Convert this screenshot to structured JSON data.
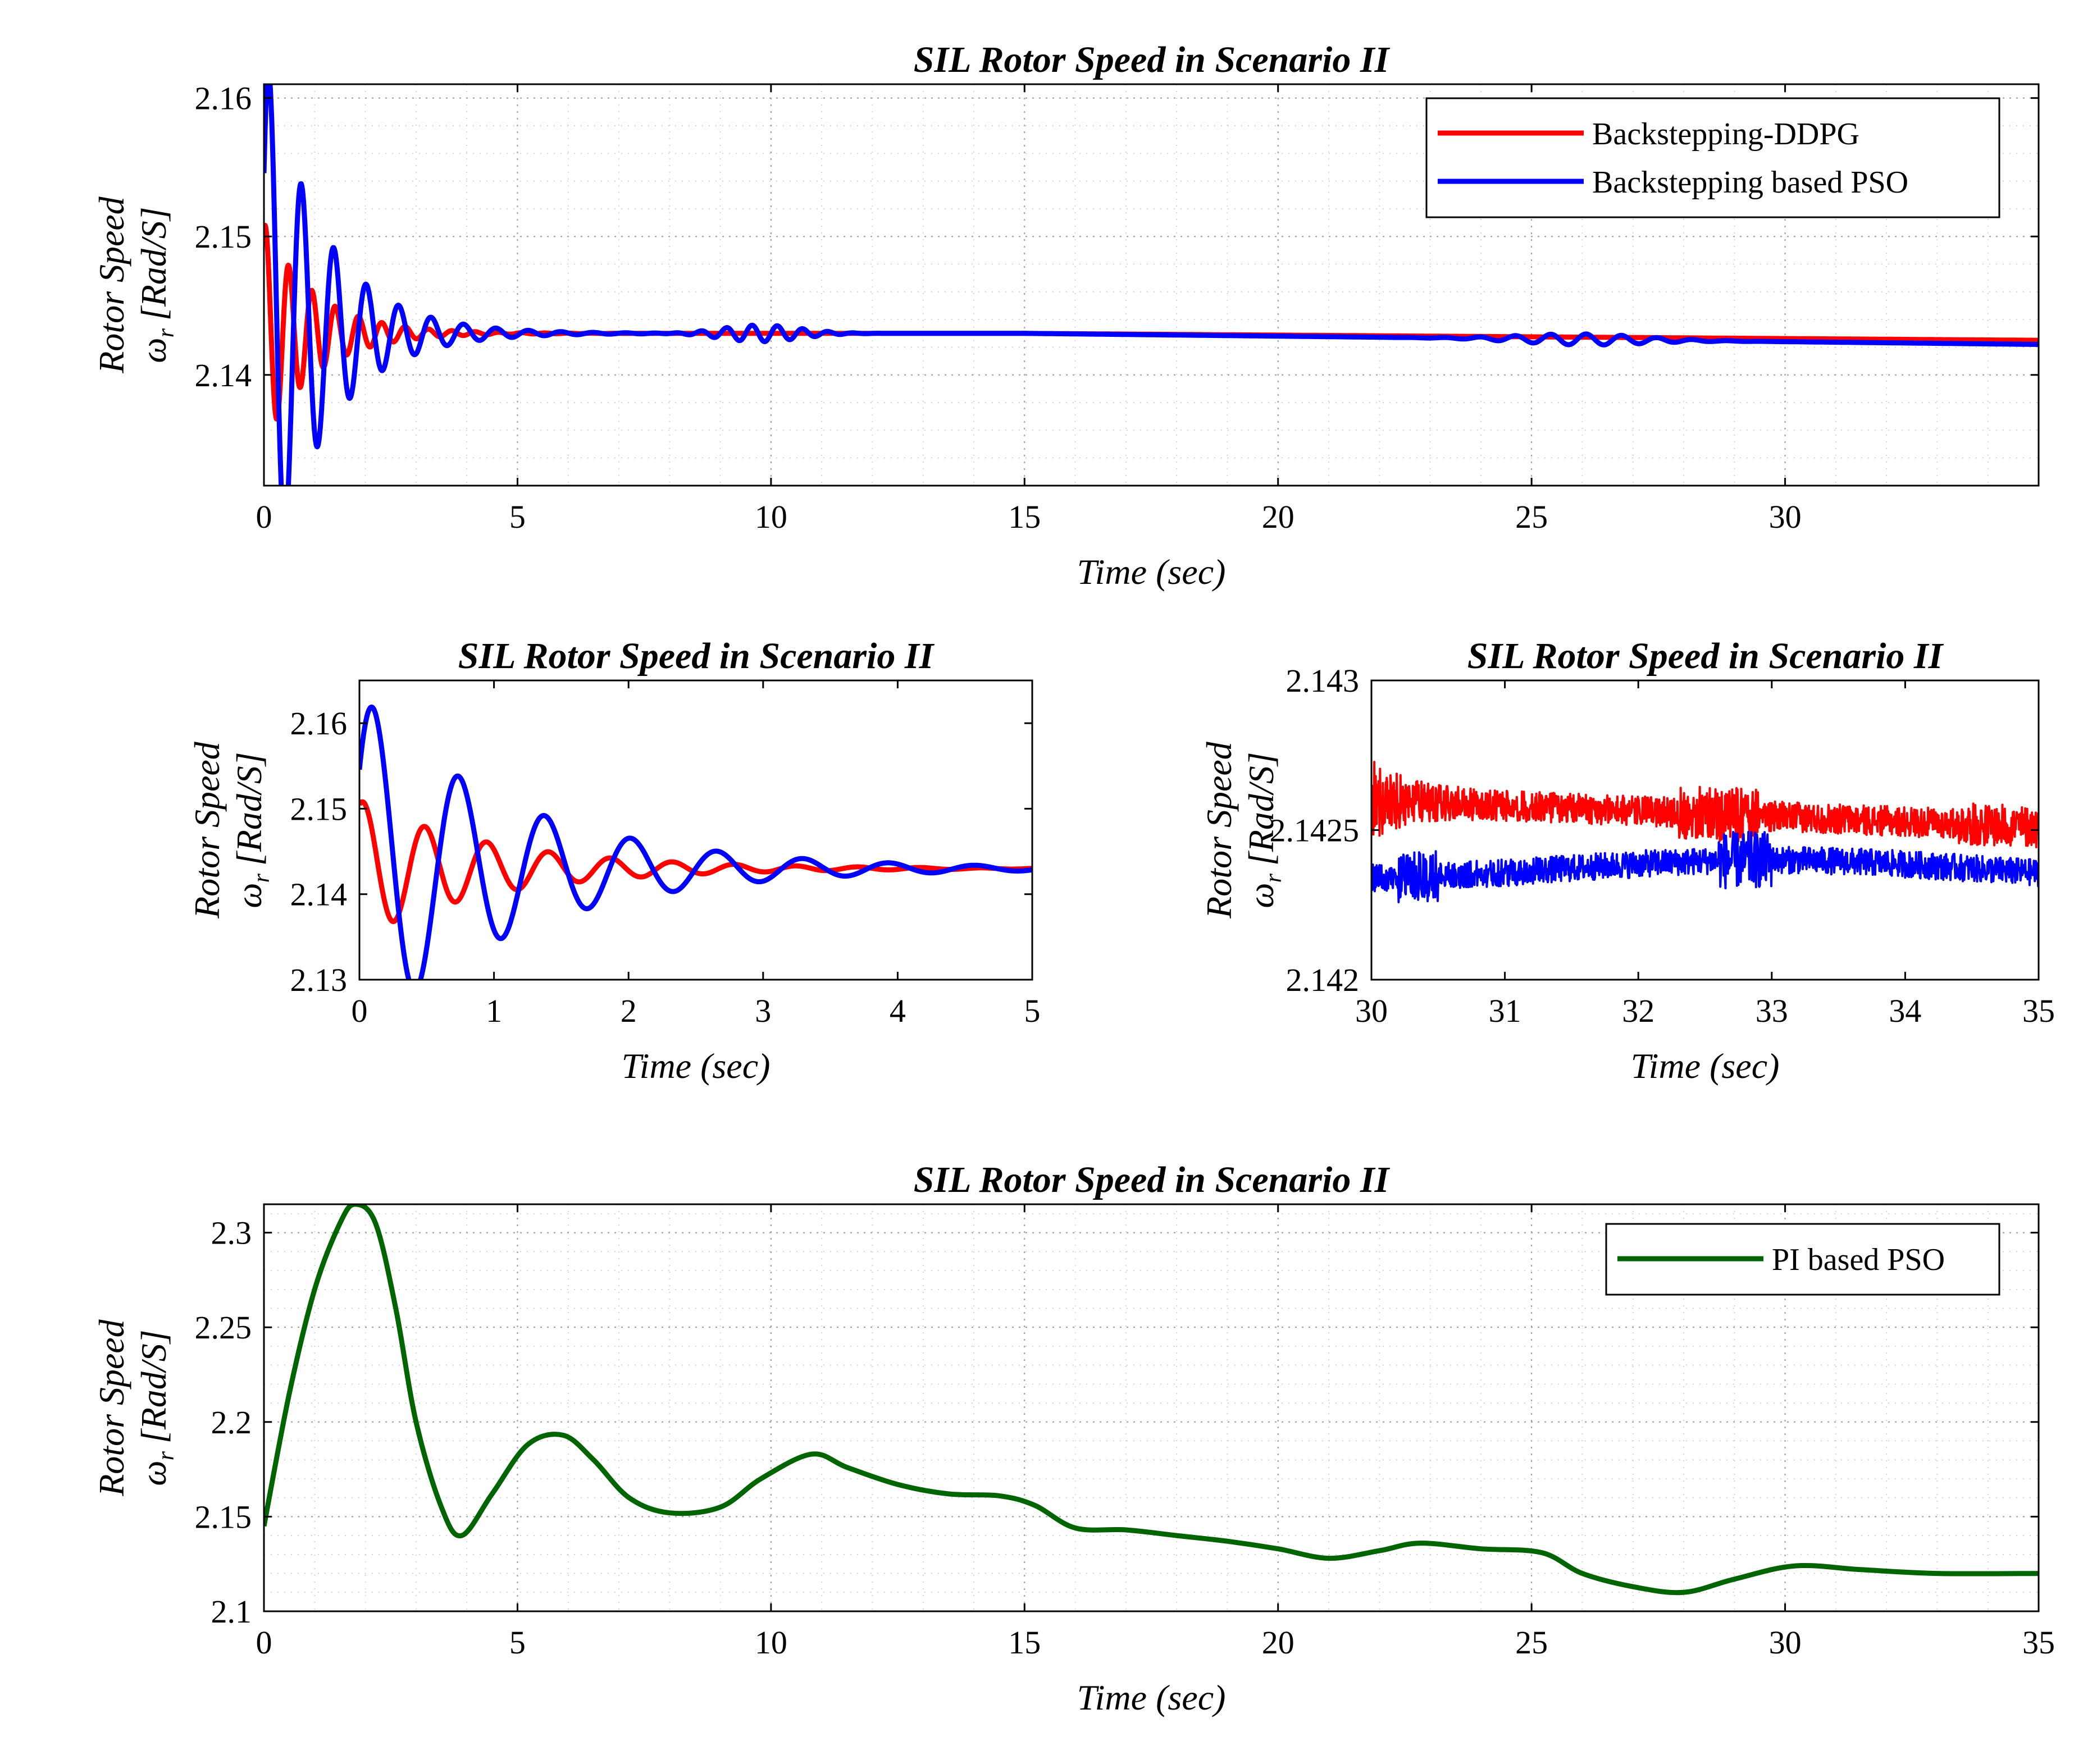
{
  "chart_data": [
    {
      "id": "top",
      "type": "line",
      "title": "SIL Rotor Speed in Scenario II",
      "xlabel": "Time (sec)",
      "ylabel_line1": "Rotor Speed",
      "ylabel_omega": "ω",
      "ylabel_sub": "r",
      "ylabel_unit": "[Rad/S]",
      "xlim": [
        0,
        35
      ],
      "ylim": [
        2.132,
        2.161
      ],
      "xticks": [
        0,
        5,
        10,
        15,
        20,
        25,
        30
      ],
      "xtick_labels": [
        "0",
        "5",
        "10",
        "15",
        "20",
        "25",
        "30"
      ],
      "yticks": [
        2.14,
        2.15,
        2.16
      ],
      "ytick_labels": [
        "2.14",
        "2.15",
        "2.16"
      ],
      "grid": true,
      "legend": "top-right",
      "series": [
        {
          "name": "Backstepping-DDPG",
          "color": "#ff0000",
          "model": "ddpg"
        },
        {
          "name": "Backstepping based PSO",
          "color": "#0000ff",
          "model": "pso"
        }
      ]
    },
    {
      "id": "midleft",
      "type": "line",
      "title": "SIL Rotor Speed in Scenario II",
      "xlabel": "Time (sec)",
      "ylabel_line1": "Rotor Speed",
      "ylabel_omega": "ω",
      "ylabel_sub": "r",
      "ylabel_unit": "[Rad/S]",
      "xlim": [
        0,
        5
      ],
      "ylim": [
        2.13,
        2.165
      ],
      "xticks": [
        0,
        1,
        2,
        3,
        4,
        5
      ],
      "xtick_labels": [
        "0",
        "1",
        "2",
        "3",
        "4",
        "5"
      ],
      "yticks": [
        2.13,
        2.14,
        2.15,
        2.16
      ],
      "ytick_labels": [
        "2.13",
        "2.14",
        "2.15",
        "2.16"
      ],
      "grid": false,
      "series": [
        {
          "name": "Backstepping-DDPG",
          "color": "#ff0000",
          "model": "ddpg"
        },
        {
          "name": "Backstepping based PSO",
          "color": "#0000ff",
          "model": "pso"
        }
      ]
    },
    {
      "id": "midright",
      "type": "line",
      "title": "SIL Rotor Speed in Scenario II",
      "xlabel": "Time (sec)",
      "ylabel_line1": "Rotor Speed",
      "ylabel_omega": "ω",
      "ylabel_sub": "r",
      "ylabel_unit": "[Rad/S]",
      "xlim": [
        30,
        35
      ],
      "ylim": [
        2.142,
        2.143
      ],
      "xticks": [
        30,
        31,
        32,
        33,
        34,
        35
      ],
      "xtick_labels": [
        "30",
        "31",
        "32",
        "33",
        "34",
        "35"
      ],
      "yticks": [
        2.142,
        2.1425,
        2.143
      ],
      "ytick_labels": [
        "2.142",
        "2.1425",
        "2.143"
      ],
      "grid": false,
      "series": [
        {
          "name": "Backstepping-DDPG",
          "color": "#ff0000",
          "model": "noise_ddpg"
        },
        {
          "name": "Backstepping based PSO",
          "color": "#0000ff",
          "model": "noise_pso"
        }
      ]
    },
    {
      "id": "bottom",
      "type": "line",
      "title": "SIL Rotor Speed in Scenario II",
      "xlabel": "Time (sec)",
      "ylabel_line1": "Rotor Speed",
      "ylabel_omega": "ω",
      "ylabel_sub": "r",
      "ylabel_unit": "[Rad/S]",
      "xlim": [
        0,
        35
      ],
      "ylim": [
        2.1,
        2.315
      ],
      "xticks": [
        0,
        5,
        10,
        15,
        20,
        25,
        30,
        35
      ],
      "xtick_labels": [
        "0",
        "5",
        "10",
        "15",
        "20",
        "25",
        "30",
        "35"
      ],
      "yticks": [
        2.1,
        2.15,
        2.2,
        2.25,
        2.3
      ],
      "ytick_labels": [
        "2.1",
        "2.15",
        "2.2",
        "2.25",
        "2.3"
      ],
      "grid": true,
      "legend": "top-right",
      "series": [
        {
          "name": "PI based PSO",
          "color": "#006400",
          "x": [
            0,
            0.5,
            1,
            1.5,
            1.8,
            2.2,
            2.6,
            3.0,
            3.5,
            3.9,
            4.5,
            5.2,
            5.9,
            6.5,
            7.2,
            8.0,
            9.0,
            9.8,
            10.8,
            11.5,
            12.5,
            13.5,
            14.5,
            15.2,
            16.0,
            17.0,
            18.0,
            19.0,
            20.0,
            21.0,
            22.0,
            22.8,
            24.0,
            25.2,
            26.0,
            27.0,
            28.0,
            29.0,
            30.2,
            31.5,
            33.0,
            35.0
          ],
          "y": [
            2.145,
            2.215,
            2.27,
            2.305,
            2.315,
            2.305,
            2.26,
            2.2,
            2.155,
            2.14,
            2.162,
            2.188,
            2.193,
            2.18,
            2.16,
            2.152,
            2.155,
            2.17,
            2.183,
            2.176,
            2.167,
            2.162,
            2.161,
            2.156,
            2.144,
            2.143,
            2.14,
            2.137,
            2.133,
            2.128,
            2.132,
            2.136,
            2.133,
            2.131,
            2.12,
            2.113,
            2.11,
            2.117,
            2.124,
            2.122,
            2.12,
            2.12
          ]
        }
      ]
    }
  ]
}
